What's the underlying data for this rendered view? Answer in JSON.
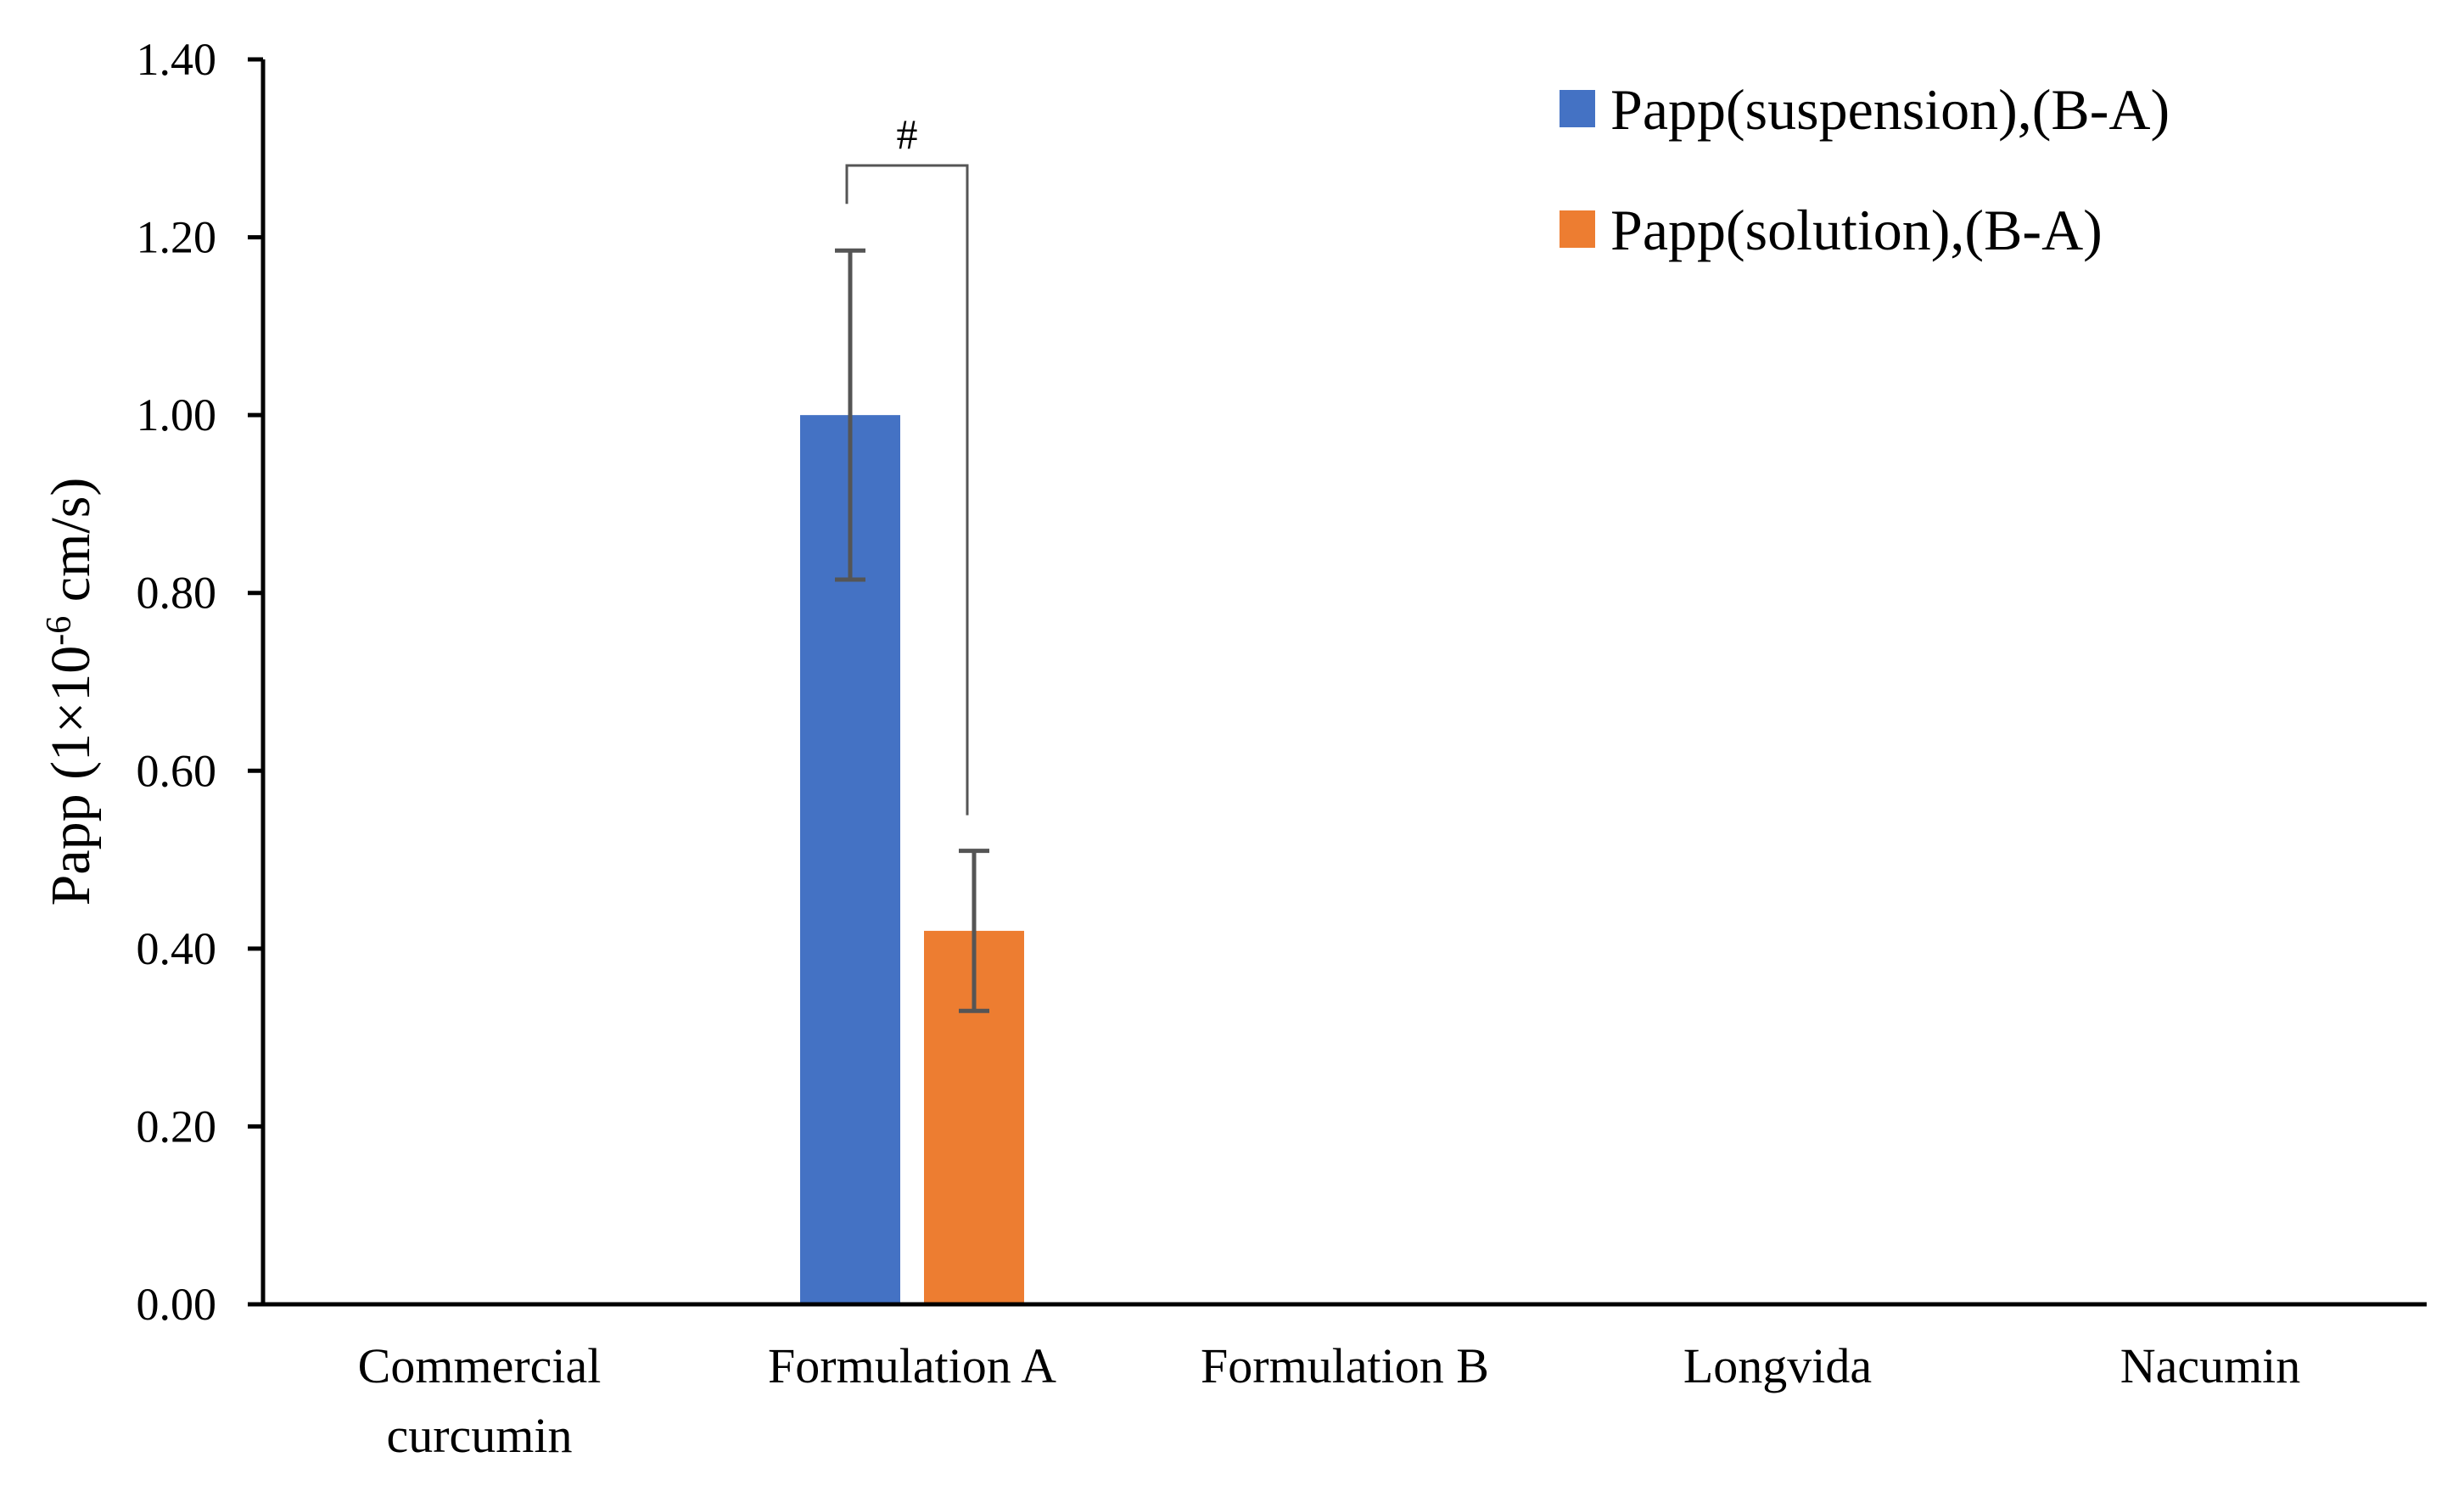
{
  "chart_data": {
    "type": "bar",
    "title": "",
    "xlabel": "",
    "ylabel": {
      "prefix": "Papp (1×10",
      "superscript": "-6",
      "suffix": " cm/s)"
    },
    "ylim": [
      0,
      1.4
    ],
    "yticks": [
      "0.00",
      "0.20",
      "0.40",
      "0.60",
      "0.80",
      "1.00",
      "1.20",
      "1.40"
    ],
    "categories": [
      [
        "Commercial",
        "curcumin"
      ],
      [
        "Formulation A"
      ],
      [
        "Formulation B"
      ],
      [
        "Longvida"
      ],
      [
        "Nacumin"
      ]
    ],
    "series": [
      {
        "name": "Papp(suspension),(B-A)",
        "color": "#4472C4",
        "values": [
          null,
          1.0,
          null,
          null,
          null
        ],
        "errors": [
          null,
          0.185,
          null,
          null,
          null
        ]
      },
      {
        "name": "Papp(solution),(B-A)",
        "color": "#ED7D31",
        "values": [
          null,
          0.42,
          null,
          null,
          null
        ],
        "errors": [
          null,
          0.09,
          null,
          null,
          null
        ]
      }
    ],
    "legend_position": "top-right",
    "grid": false,
    "annotations": [
      {
        "text": "#",
        "category_index": 1,
        "type": "significance-bracket"
      }
    ]
  }
}
